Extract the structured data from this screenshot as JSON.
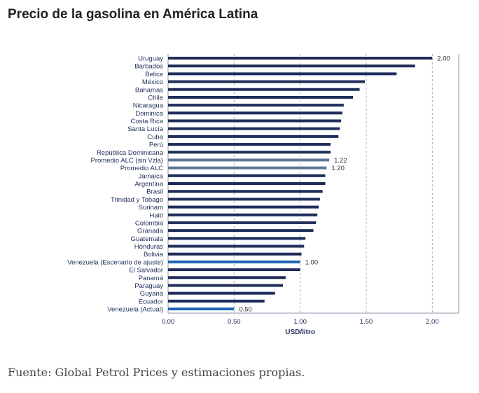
{
  "chart_data": {
    "type": "bar",
    "orientation": "horizontal",
    "title": "Precio de la gasolina en América Latina",
    "xlabel": "USD/litro",
    "xlim": [
      0,
      2.2
    ],
    "xticks": [
      "0.00",
      "0.50",
      "1.00",
      "1.50",
      "2.00"
    ],
    "grid": true,
    "categories": [
      "Uruguay",
      "Barbados",
      "Belice",
      "México",
      "Bahamas",
      "Chile",
      "Nicaragua",
      "Dominica",
      "Costa Rica",
      "Santa Lucía",
      "Cuba",
      "Perú",
      "República Dominicana",
      "Promedio ALC (sin Vzla)",
      "Promedio ALC",
      "Jamaica",
      "Argentina",
      "Brasil",
      "Trinidad y Tobago",
      "Surinam",
      "Haití",
      "Colombia",
      "Granada",
      "Guatemala",
      "Honduras",
      "Bolivia",
      "Venezuela (Escenario de ajuste)",
      "El Salvador",
      "Panamá",
      "Paraguay",
      "Guyana",
      "Ecuador",
      "Venezuela (Actual)"
    ],
    "values": [
      2.0,
      1.87,
      1.73,
      1.49,
      1.45,
      1.4,
      1.33,
      1.32,
      1.31,
      1.3,
      1.29,
      1.23,
      1.23,
      1.22,
      1.2,
      1.19,
      1.19,
      1.17,
      1.15,
      1.14,
      1.13,
      1.12,
      1.1,
      1.04,
      1.03,
      1.01,
      1.0,
      1.0,
      0.89,
      0.87,
      0.81,
      0.73,
      0.5
    ],
    "data_labels": {
      "0": "2.00",
      "13": "1.22",
      "14": "1.20",
      "26": "1.00",
      "32": "0.50"
    },
    "highlight": {
      "13": "#5d7797",
      "14": "#5d7797",
      "26": "#1b64b0",
      "32": "#1b64b0"
    },
    "bar_color": "#1f2d5a"
  },
  "source": "Fuente: Global Petrol Prices y estimaciones propias."
}
